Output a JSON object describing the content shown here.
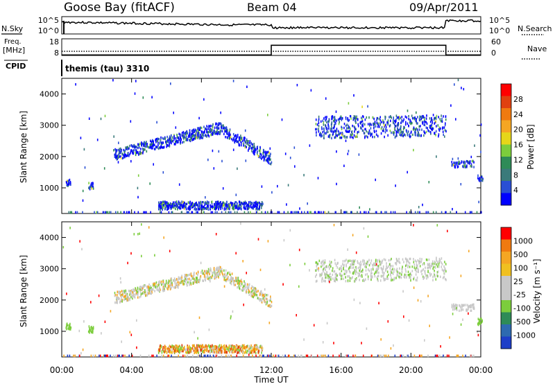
{
  "header": {
    "station": "Goose Bay (fitACF)",
    "beam": "Beam 04",
    "date": "09/Apr/2011"
  },
  "noise_panel": {
    "left_label": "N.Sky",
    "right_label": "N.Search",
    "left_ticks": [
      "10^5",
      "10^0"
    ],
    "right_ticks": [
      "10^5",
      "10^0"
    ]
  },
  "freq_panel": {
    "left_label_top": "Freq.",
    "left_label_unit": "[MHz]",
    "left_ticks": [
      "18",
      "8"
    ],
    "right_label": "Nave",
    "right_ticks": [
      "60",
      "0"
    ],
    "freq_mhz": 10.5,
    "nave_segments": [
      {
        "from_hour": 0,
        "to_hour": 12,
        "nave": 2
      },
      {
        "from_hour": 12,
        "to_hour": 22,
        "nave": 40
      },
      {
        "from_hour": 22,
        "to_hour": 24,
        "nave": 2
      }
    ]
  },
  "cpid": {
    "label": "CPID",
    "program": "themis (tau) 3310"
  },
  "power_panel": {
    "ylabel": "Slant Range [km]",
    "colorbar_label": "Power [dB]",
    "colorbar_ticks": [
      "28",
      "24",
      "20",
      "16",
      "12",
      "8",
      "4"
    ],
    "colors": [
      "#0000ff",
      "#2a4fd4",
      "#3a7a7a",
      "#2e8b57",
      "#7ccd3c",
      "#e6d619",
      "#f5a623",
      "#f07a10",
      "#e04010",
      "#ff0000"
    ]
  },
  "velocity_panel": {
    "ylabel": "Slant Range [km]",
    "colorbar_label": "Velocity [m s⁻¹]",
    "colorbar_ticks": [
      "1000",
      "500",
      "100",
      "25",
      "-25",
      "-100",
      "-500",
      "-1000"
    ],
    "colors": [
      "#1e3ec8",
      "#2e6ab0",
      "#2e8b57",
      "#7ccd3c",
      "#c8c8c8",
      "#c8c8c8",
      "#f0c020",
      "#f5a623",
      "#f07a10",
      "#ff0000"
    ]
  },
  "x_axis": {
    "label": "Time UT",
    "ticks": [
      "00:00",
      "04:00",
      "08:00",
      "12:00",
      "16:00",
      "20:00",
      "00:00"
    ]
  },
  "chart_data": {
    "type": "heatmap",
    "x_range_hours": [
      0,
      24
    ],
    "y_ticks_km": [
      1000,
      2000,
      3000,
      4000
    ],
    "ylim_km": [
      180,
      4500
    ],
    "echo_regions": [
      {
        "name": "ground-scatter-arc",
        "t0": 3.0,
        "t1": 12.0,
        "r_center_start": 2050,
        "r_center_peak": 2900,
        "t_peak": 9.0,
        "r_center_end": 1900
      },
      {
        "name": "near-range",
        "t0": 5.5,
        "t1": 11.5,
        "r0": 300,
        "r1": 550
      },
      {
        "name": "late-band",
        "t0": 14.5,
        "t1": 22.0,
        "r0": 2600,
        "r1": 3300
      },
      {
        "name": "end-segment",
        "t0": 22.3,
        "t1": 23.6,
        "r0": 1650,
        "r1": 1850
      }
    ]
  }
}
